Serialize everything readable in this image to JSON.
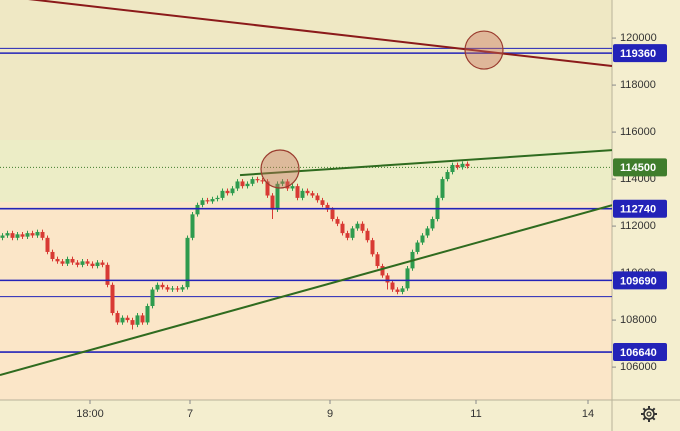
{
  "chart_data": {
    "type": "candlestick",
    "open": [
      111500,
      111600,
      111700,
      111500,
      111650,
      111550,
      111700,
      111600,
      111750,
      111500,
      110900,
      110600,
      110500,
      110400,
      110600,
      110450,
      110350,
      110500,
      110400,
      110300,
      110450,
      110350,
      109500,
      108300,
      107900,
      108100,
      108000,
      107800,
      108200,
      107900,
      108600,
      109300,
      109500,
      109400,
      109300,
      109350,
      109300,
      109400,
      111500,
      112500,
      112900,
      113100,
      113050,
      113150,
      113200,
      113500,
      113400,
      113600,
      113900,
      113700,
      113800,
      114000,
      113950,
      113900,
      113300,
      112700,
      113800,
      113900,
      113600,
      113700,
      113200,
      113500,
      113400,
      113300,
      113100,
      112900,
      112700,
      112300,
      112100,
      111700,
      111500,
      111900,
      112100,
      111800,
      111400,
      110800,
      110300,
      109900,
      109600,
      109300,
      109200,
      109350,
      110200,
      110900,
      111300,
      111600,
      111900,
      112300,
      113200,
      114000,
      114300,
      114600,
      114500,
      114650
    ],
    "high": [
      111700,
      111800,
      111800,
      111750,
      111750,
      111800,
      111800,
      111850,
      111850,
      111600,
      111000,
      110700,
      110600,
      110700,
      110700,
      110550,
      110600,
      110600,
      110500,
      110550,
      110550,
      110450,
      109600,
      108400,
      108200,
      108200,
      108100,
      108300,
      108300,
      108700,
      109400,
      109600,
      109600,
      109500,
      109450,
      109450,
      109500,
      111600,
      112600,
      113000,
      113200,
      113200,
      113250,
      113300,
      113600,
      113600,
      113700,
      114000,
      114000,
      113900,
      114100,
      114100,
      114050,
      114000,
      113400,
      113900,
      114000,
      114000,
      113800,
      113800,
      113600,
      113600,
      113500,
      113400,
      113200,
      113000,
      112800,
      112400,
      112200,
      111800,
      112000,
      112200,
      112200,
      111900,
      111500,
      110900,
      110400,
      110000,
      109700,
      109400,
      109450,
      110300,
      111000,
      111400,
      111700,
      112000,
      112400,
      113300,
      114100,
      114400,
      114700,
      114700,
      114750,
      114750
    ],
    "low": [
      111400,
      111500,
      111400,
      111400,
      111450,
      111450,
      111500,
      111500,
      111400,
      110800,
      110500,
      110400,
      110300,
      110300,
      110350,
      110250,
      110250,
      110300,
      110200,
      110200,
      110250,
      109400,
      108200,
      107800,
      107800,
      107900,
      107600,
      107700,
      107800,
      107800,
      108500,
      109200,
      109300,
      109200,
      109200,
      109200,
      109200,
      109300,
      111400,
      112400,
      112800,
      112950,
      112950,
      113050,
      113100,
      113300,
      113300,
      113500,
      113600,
      113600,
      113700,
      113850,
      113800,
      113200,
      112300,
      112600,
      113700,
      113500,
      113500,
      113100,
      113100,
      113300,
      113200,
      113000,
      112800,
      112600,
      112200,
      112000,
      111600,
      111400,
      111400,
      111800,
      111700,
      111300,
      110700,
      110200,
      109800,
      109300,
      109200,
      109100,
      109100,
      109250,
      110100,
      110800,
      111200,
      111500,
      111800,
      112200,
      113100,
      113900,
      114200,
      114400,
      114400,
      114450
    ],
    "close": [
      111600,
      111700,
      111500,
      111650,
      111550,
      111700,
      111600,
      111750,
      111500,
      110900,
      110600,
      110500,
      110400,
      110600,
      110450,
      110350,
      110500,
      110400,
      110300,
      110450,
      110350,
      109500,
      108300,
      107900,
      108100,
      108000,
      107800,
      108200,
      107900,
      108600,
      109300,
      109500,
      109400,
      109300,
      109350,
      109300,
      109400,
      111500,
      112500,
      112900,
      113100,
      113050,
      113150,
      113200,
      113500,
      113400,
      113600,
      113900,
      113700,
      113800,
      114000,
      113950,
      113900,
      113300,
      112700,
      113800,
      113900,
      113600,
      113700,
      113200,
      113500,
      113400,
      113300,
      113100,
      112900,
      112700,
      112300,
      112100,
      111700,
      111500,
      111900,
      112100,
      111800,
      111400,
      110800,
      110300,
      109900,
      109600,
      109300,
      109200,
      109350,
      110200,
      110900,
      111300,
      111600,
      111900,
      112300,
      113200,
      114000,
      114300,
      114600,
      114500,
      114650,
      114550
    ],
    "up_color": "#2e9b4e",
    "down_color": "#d83a34",
    "xlim": [
      -0.5,
      121.9
    ],
    "xticks": [
      {
        "value": 17.5,
        "label": "18:00"
      },
      {
        "value": 37.5,
        "label": "7"
      },
      {
        "value": 65.5,
        "label": "9"
      },
      {
        "value": 94.7,
        "label": "11"
      },
      {
        "value": 117.1,
        "label": "14"
      }
    ],
    "ylim": [
      104600,
      121620
    ],
    "yticks": [
      106000,
      108000,
      110000,
      112000,
      114000,
      116000,
      118000,
      120000
    ],
    "price_lines": {
      "values": [
        119360,
        112740,
        109690,
        106640
      ],
      "color": "#2323b8"
    },
    "extra_lines": {
      "values": [
        119560,
        109000
      ],
      "color": "#2323b8"
    },
    "last_price": {
      "value": 114500,
      "color": "#3f7d2c"
    },
    "trend_lines": [
      {
        "x": [
          -0.5,
          121.9
        ],
        "y": [
          121800,
          118810
        ],
        "color": "#8b1a1a"
      },
      {
        "x": [
          47.5,
          121.9
        ],
        "y": [
          114170,
          115230
        ],
        "color": "#2f6b1f"
      },
      {
        "x": [
          -0.5,
          121.9
        ],
        "y": [
          105660,
          112890
        ],
        "color": "#2f6b1f"
      }
    ],
    "circles": [
      {
        "x": 96.3,
        "y": 119490
      },
      {
        "x": 55.5,
        "y": 114430
      }
    ]
  }
}
